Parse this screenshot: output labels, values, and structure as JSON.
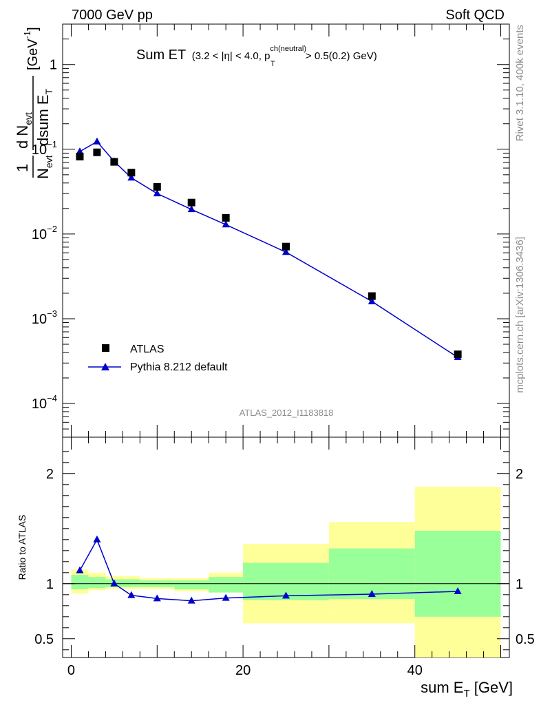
{
  "header": {
    "left": "7000 GeV pp",
    "right": "Soft QCD"
  },
  "main_title": {
    "lead": "Sum ET",
    "cuts_a": "(3.2 < |",
    "eta": "η",
    "cuts_b": "| < 4.0, p",
    "sup": "ch(neutral)",
    "sub": "T",
    "cuts_c": " > 0.5(0.2) GeV)"
  },
  "y_axis_label": {
    "num_a": "1",
    "den_a": "N",
    "den_a_sub": "evt",
    "num_b": "d N",
    "num_b_sub": "evt",
    "den_b": "dsum E",
    "den_b_sub": "T",
    "unit": "[GeV",
    "unit_sup": "-1",
    "unit_end": "]"
  },
  "side_labels": {
    "rivet": "Rivet 3.1.10,  400k events",
    "mcplots": "mcplots.cern.ch [arXiv:1306.3436]"
  },
  "analysis_id": "ATLAS_2012_I1183818",
  "ratio_ylabel": "Ratio to ATLAS",
  "x_axis_label": {
    "main": "sum E",
    "sub": "T",
    "unit": " [GeV]"
  },
  "legend": {
    "data": "ATLAS",
    "mc": "Pythia 8.212 default"
  },
  "colors": {
    "data": "#000000",
    "mc": "#0000cc",
    "band_inner": "#99ff99",
    "band_outer": "#ffff99"
  },
  "chart_data": {
    "type": "scatter",
    "x_range": [
      -1,
      51
    ],
    "main_y_log": true,
    "main_y_range": [
      4e-05,
      3.0
    ],
    "main_y_ticks": [
      {
        "v": 1,
        "base": "1",
        "exp": ""
      },
      {
        "v": 0.1,
        "base": "10",
        "exp": "−1"
      },
      {
        "v": 0.01,
        "base": "10",
        "exp": "−2"
      },
      {
        "v": 0.001,
        "base": "10",
        "exp": "−3"
      },
      {
        "v": 0.0001,
        "base": "10",
        "exp": "−4"
      }
    ],
    "ratio_y_range": [
      0.33,
      2.33
    ],
    "ratio_y_ticks": [
      "0.5",
      "1",
      "2"
    ],
    "x_ticks": [
      "0",
      "20",
      "40"
    ],
    "series": [
      {
        "name": "ATLAS",
        "x": [
          1,
          3,
          5,
          7,
          10,
          14,
          18,
          25,
          35,
          45
        ],
        "y": [
          0.082,
          0.092,
          0.071,
          0.053,
          0.036,
          0.0235,
          0.0155,
          0.0071,
          0.00185,
          0.00038
        ]
      },
      {
        "name": "Pythia 8.212 default",
        "x": [
          1,
          3,
          5,
          7,
          10,
          14,
          18,
          25,
          35,
          45
        ],
        "y": [
          0.094,
          0.123,
          0.072,
          0.046,
          0.03,
          0.0195,
          0.0129,
          0.0061,
          0.0016,
          0.00035
        ]
      }
    ],
    "ratio": {
      "x": [
        1,
        3,
        5,
        7,
        10,
        14,
        18,
        25,
        35,
        45
      ],
      "values": [
        1.12,
        1.4,
        1.0,
        0.895,
        0.865,
        0.845,
        0.87,
        0.89,
        0.905,
        0.93
      ]
    },
    "bands": {
      "edges": [
        0,
        2,
        4,
        8,
        12,
        16,
        20,
        30,
        40,
        50
      ],
      "inner_low": [
        0.95,
        0.96,
        0.97,
        0.97,
        0.95,
        0.92,
        0.85,
        0.86,
        0.7,
        0.53
      ],
      "inner_high": [
        1.08,
        1.06,
        1.04,
        1.03,
        1.03,
        1.06,
        1.19,
        1.32,
        1.48,
        1.48
      ],
      "outer_low": [
        0.91,
        0.94,
        0.95,
        0.95,
        0.93,
        0.92,
        0.64,
        0.64,
        0.33,
        0.33
      ],
      "outer_high": [
        1.13,
        1.1,
        1.07,
        1.05,
        1.05,
        1.1,
        1.36,
        1.56,
        1.88,
        1.88
      ]
    }
  }
}
